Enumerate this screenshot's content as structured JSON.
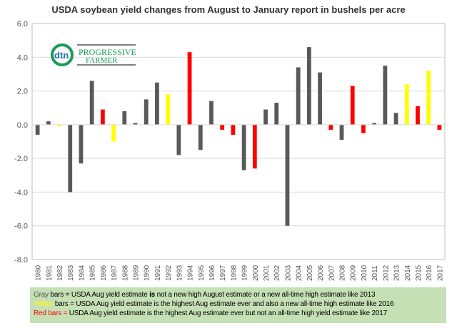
{
  "chart_data": {
    "type": "bar",
    "title": "USDA  soybean yield changes from August to January report in bushels per acre",
    "xlabel": "",
    "ylabel": "",
    "ylim": [
      -8,
      6
    ],
    "yticks": [
      "6.0",
      "4.0",
      "2.0",
      "0.0",
      "-2.0",
      "-4.0",
      "-6.0",
      "-8.0"
    ],
    "grid": true,
    "categories": [
      "1980",
      "1981",
      "1982",
      "1983",
      "1984",
      "1985",
      "1986",
      "1987",
      "1988",
      "1989",
      "1990",
      "1991",
      "1992",
      "1993",
      "1994",
      "1995",
      "1996",
      "1997",
      "1998",
      "1999",
      "2000",
      "2001",
      "2002",
      "2003",
      "2004",
      "2005",
      "2006",
      "2007",
      "2008",
      "2009",
      "2010",
      "2011",
      "2012",
      "2013",
      "2014",
      "2015",
      "2016",
      "2017"
    ],
    "values": [
      -0.6,
      0.2,
      -0.1,
      -4.0,
      -2.3,
      2.6,
      0.9,
      -1.0,
      0.8,
      0.1,
      1.5,
      2.5,
      1.8,
      -1.8,
      4.3,
      -1.5,
      1.4,
      -0.3,
      -0.6,
      -2.7,
      -2.6,
      0.9,
      1.3,
      -6.0,
      3.4,
      4.6,
      3.1,
      -0.3,
      -0.9,
      2.3,
      -0.5,
      0.1,
      3.5,
      0.7,
      2.4,
      1.1,
      3.2,
      -0.3
    ],
    "bar_colors": [
      "gray",
      "gray",
      "yellow",
      "gray",
      "gray",
      "gray",
      "red",
      "yellow",
      "gray",
      "gray",
      "gray",
      "gray",
      "yellow",
      "gray",
      "red",
      "gray",
      "gray",
      "red",
      "red",
      "gray",
      "red",
      "gray",
      "gray",
      "gray",
      "gray",
      "gray",
      "gray",
      "red",
      "gray",
      "red",
      "red",
      "gray",
      "gray",
      "gray",
      "yellow",
      "red",
      "yellow",
      "red"
    ],
    "colors": {
      "gray": "#595959",
      "yellow": "#ffff00",
      "red": "#ff0000"
    }
  },
  "logo": {
    "text": "dtn THE PROGRESSIVE FARMER"
  },
  "legend": {
    "gray_label": "Gray",
    "gray_text_a": " bars = USDA Aug yield estimate ",
    "gray_bold": "is",
    "gray_text_b": " not a new high August estimate or a new all-time high estimate like 2013",
    "yellow_label": "Yellow",
    "yellow_text": " bars = USDA Aug yield estimate is the highest Aug estimate ever and also a new all-time high estimate like 2016",
    "red_label": "Red bars = ",
    "red_text": "USDA Aug yield estimate is the highest Aug estimate ever but not an all-time high yield estimate like 2017"
  }
}
